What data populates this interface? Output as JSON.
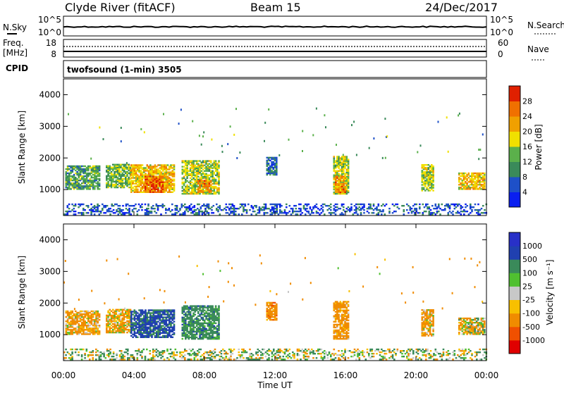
{
  "header": {
    "title": "Clyde River (fitACF)",
    "beam": "Beam 15",
    "date": "24/Dec/2017"
  },
  "panels": {
    "nsky": {
      "left_label": "N.Sky",
      "left_ticks": [
        "10^5",
        "10^0"
      ],
      "right_ticks": [
        "10^5",
        "10^0"
      ],
      "right_label": "N.Search"
    },
    "freq": {
      "left_label_top": "Freq.",
      "left_label_bottom": "[MHz]",
      "left_ticks": [
        "18",
        "8"
      ],
      "right_ticks": [
        "60",
        "0"
      ],
      "right_label": "Nave"
    },
    "cpid": {
      "left_label": "CPID",
      "program": "twofsound (1-min) 3505"
    }
  },
  "x_axis": {
    "label": "Time UT",
    "ticks": [
      "00:00",
      "04:00",
      "08:00",
      "12:00",
      "16:00",
      "20:00",
      "00:00"
    ]
  },
  "colors": {
    "power": [
      "#0a1ff0",
      "#1e50c8",
      "#3a8a5a",
      "#5bb04b",
      "#f0e000",
      "#f0a000",
      "#f07000",
      "#e02000"
    ],
    "velocity": [
      "#e00000",
      "#f05000",
      "#f08c00",
      "#f8c000",
      "#c8c8c8",
      "#50c030",
      "#3a8a5a",
      "#2040b0",
      "#2830c8"
    ]
  },
  "chart_data": [
    {
      "type": "heatmap",
      "quantity": "Power",
      "ylabel": "Slant Range [km]",
      "xlabel": "",
      "x_range": [
        0,
        24
      ],
      "ylim": [
        180,
        4500
      ],
      "yticks": [
        "1000",
        "2000",
        "3000",
        "4000"
      ],
      "colorbar": {
        "label": "Power [dB]",
        "ticks": [
          "4",
          "8",
          "12",
          "16",
          "20",
          "24",
          "28"
        ],
        "range": [
          0,
          32
        ]
      },
      "regions": [
        {
          "t0": 0.1,
          "t1": 2.0,
          "r0": 1000,
          "r1": 1750,
          "level": 12
        },
        {
          "t0": 2.4,
          "t1": 3.8,
          "r0": 1050,
          "r1": 1800,
          "level": 14
        },
        {
          "t0": 3.8,
          "t1": 6.3,
          "r0": 900,
          "r1": 1800,
          "level": 20
        },
        {
          "t0": 4.6,
          "t1": 5.6,
          "r0": 900,
          "r1": 1400,
          "level": 26
        },
        {
          "t0": 6.7,
          "t1": 8.8,
          "r0": 850,
          "r1": 1900,
          "level": 16
        },
        {
          "t0": 7.6,
          "t1": 8.4,
          "r0": 900,
          "r1": 1300,
          "level": 24
        },
        {
          "t0": 11.5,
          "t1": 12.1,
          "r0": 1450,
          "r1": 2000,
          "level": 8
        },
        {
          "t0": 15.3,
          "t1": 16.2,
          "r0": 850,
          "r1": 2050,
          "level": 16
        },
        {
          "t0": 15.4,
          "t1": 16.0,
          "r0": 900,
          "r1": 1400,
          "level": 24
        },
        {
          "t0": 20.3,
          "t1": 21.0,
          "r0": 950,
          "r1": 1800,
          "level": 16
        },
        {
          "t0": 22.4,
          "t1": 23.9,
          "r0": 1000,
          "r1": 1500,
          "level": 20
        },
        {
          "t0": 0.0,
          "t1": 24.0,
          "r0": 200,
          "r1": 560,
          "level": 6
        }
      ]
    },
    {
      "type": "heatmap",
      "quantity": "Velocity",
      "ylabel": "Slant Range [km]",
      "xlabel": "Time UT",
      "x_range": [
        0,
        24
      ],
      "ylim": [
        180,
        4500
      ],
      "yticks": [
        "1000",
        "2000",
        "3000",
        "4000"
      ],
      "colorbar": {
        "label": "Velocity [m s⁻¹]",
        "ticks": [
          "1000",
          "500",
          "100",
          "25",
          "-25",
          "-100",
          "-500",
          "-1000"
        ]
      },
      "regions": [
        {
          "t0": 0.1,
          "t1": 2.0,
          "r0": 1000,
          "r1": 1750,
          "v": -200
        },
        {
          "t0": 2.4,
          "t1": 3.8,
          "r0": 1050,
          "r1": 1800,
          "v": -150
        },
        {
          "t0": 3.8,
          "t1": 6.3,
          "r0": 900,
          "r1": 1800,
          "v": 600
        },
        {
          "t0": 6.7,
          "t1": 8.8,
          "r0": 850,
          "r1": 1900,
          "v": 300
        },
        {
          "t0": 11.5,
          "t1": 12.1,
          "r0": 1450,
          "r1": 2000,
          "v": -300
        },
        {
          "t0": 15.3,
          "t1": 16.2,
          "r0": 850,
          "r1": 2050,
          "v": -250
        },
        {
          "t0": 20.3,
          "t1": 21.0,
          "r0": 950,
          "r1": 1800,
          "v": -200
        },
        {
          "t0": 22.4,
          "t1": 23.9,
          "r0": 1000,
          "r1": 1500,
          "v": -80
        },
        {
          "t0": 0.0,
          "t1": 24.0,
          "r0": 200,
          "r1": 560,
          "v": 60
        }
      ]
    }
  ]
}
